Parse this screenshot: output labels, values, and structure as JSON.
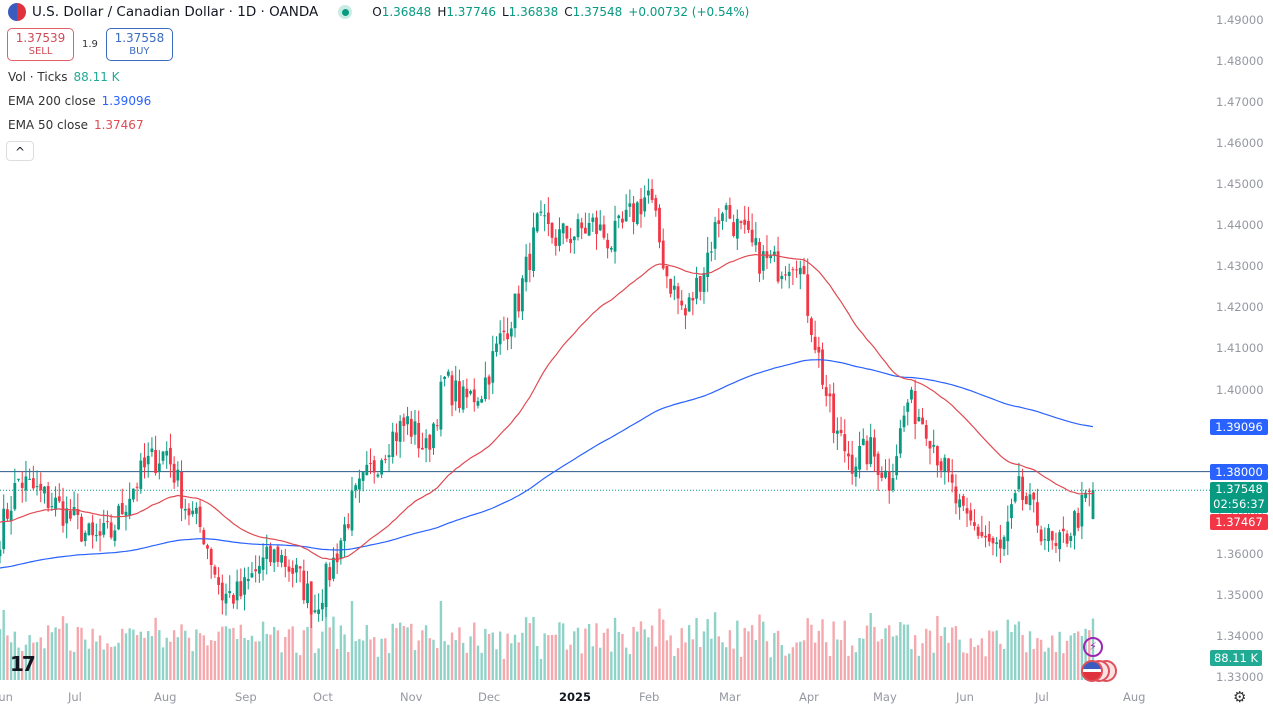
{
  "header": {
    "title": "U.S. Dollar / Canadian Dollar · 1D · OANDA",
    "open_label": "O",
    "open": "1.36848",
    "high_label": "H",
    "high": "1.37746",
    "low_label": "L",
    "low": "1.36838",
    "close_label": "C",
    "close": "1.37548",
    "change": "+0.00732 (+0.54%)"
  },
  "trade": {
    "sell_price": "1.37539",
    "sell_label": "SELL",
    "spread": "1.9",
    "buy_price": "1.37558",
    "buy_label": "BUY"
  },
  "indicators": {
    "vol_label": "Vol · Ticks",
    "vol_value": "88.11 K",
    "ema200_label": "EMA 200 close",
    "ema200_value": "1.39096",
    "ema50_label": "EMA 50 close",
    "ema50_value": "1.37467",
    "collapse": "^"
  },
  "price_tags": {
    "ema200": "1.39096",
    "level": "1.38000",
    "last": "1.37548",
    "countdown": "02:56:37",
    "ema50": "1.37467",
    "volume": "88.11 K"
  },
  "colors": {
    "up": "#089981",
    "down": "#f23645",
    "ema200": "#2962ff",
    "ema50": "#e04a52",
    "level": "#2a5a8a"
  },
  "chart_data": {
    "type": "candlestick",
    "title": "U.S. Dollar / Canadian Dollar · 1D · OANDA",
    "ylim": [
      1.33,
      1.49
    ],
    "y_ticks": [
      "1.49000",
      "1.48000",
      "1.47000",
      "1.46000",
      "1.45000",
      "1.44000",
      "1.43000",
      "1.42000",
      "1.41000",
      "1.40000",
      "1.39000",
      "1.38000",
      "1.37000",
      "1.36000",
      "1.35000",
      "1.34000",
      "1.33000"
    ],
    "x_ticks": [
      "Jun",
      "Jul",
      "Aug",
      "Sep",
      "Oct",
      "Nov",
      "Dec",
      "2025",
      "Feb",
      "Mar",
      "Apr",
      "May",
      "Jun",
      "Jul",
      "Aug"
    ],
    "horizontal_level": 1.38,
    "weekly_closes": [
      1.365,
      1.378,
      1.375,
      1.372,
      1.368,
      1.363,
      1.365,
      1.375,
      1.382,
      1.385,
      1.372,
      1.365,
      1.35,
      1.35,
      1.357,
      1.36,
      1.355,
      1.347,
      1.358,
      1.372,
      1.38,
      1.388,
      1.392,
      1.385,
      1.402,
      1.397,
      1.4,
      1.412,
      1.422,
      1.44,
      1.437,
      1.438,
      1.44,
      1.436,
      1.442,
      1.448,
      1.428,
      1.418,
      1.43,
      1.445,
      1.438,
      1.432,
      1.43,
      1.433,
      1.412,
      1.39,
      1.383,
      1.385,
      1.378,
      1.397,
      1.392,
      1.38,
      1.368,
      1.365,
      1.36,
      1.375,
      1.368,
      1.36,
      1.368,
      1.37548
    ],
    "ema_seed": {
      "ema200": 1.3565,
      "ema50": 1.368
    },
    "last_ohlc": {
      "open": 1.36848,
      "high": 1.37746,
      "low": 1.36838,
      "close": 1.37548
    },
    "series": [
      {
        "name": "EMA 200 close",
        "last": 1.39096
      },
      {
        "name": "EMA 50 close",
        "last": 1.37467
      },
      {
        "name": "Vol · Ticks",
        "last": 88110
      }
    ]
  }
}
